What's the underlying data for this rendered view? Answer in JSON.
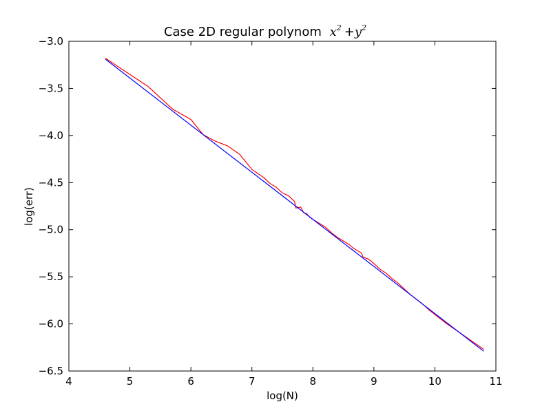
{
  "chart_data": {
    "type": "line",
    "title": "Case 2D regular polynom",
    "title_math": {
      "base1": "x",
      "exp1": "2",
      "op": "+",
      "base2": "y",
      "exp2": "2"
    },
    "xlabel": "log(N)",
    "ylabel": "log(err)",
    "xlim": [
      4,
      11
    ],
    "ylim": [
      -6.5,
      -3.0
    ],
    "xticks": [
      4,
      5,
      6,
      7,
      8,
      9,
      10,
      11
    ],
    "xtick_labels": [
      "4",
      "5",
      "6",
      "7",
      "8",
      "9",
      "10",
      "11"
    ],
    "yticks": [
      -3.0,
      -3.5,
      -4.0,
      -4.5,
      -5.0,
      -5.5,
      -6.0,
      -6.5
    ],
    "ytick_labels": [
      "−3.0",
      "−3.5",
      "−4.0",
      "−4.5",
      "−5.0",
      "−5.5",
      "−6.0",
      "−6.5"
    ],
    "grid": false,
    "series": [
      {
        "color": "#ff0000",
        "x": [
          4.6,
          5.3,
          5.7,
          6.0,
          6.2,
          6.4,
          6.6,
          6.8,
          6.9,
          7.0,
          7.2,
          7.3,
          7.4,
          7.5,
          7.6,
          7.7,
          7.72,
          7.8,
          7.85,
          7.9,
          7.95,
          8.0,
          8.1,
          8.2,
          8.25,
          8.3,
          8.4,
          8.5,
          8.6,
          8.65,
          8.7,
          8.8,
          8.82,
          8.9,
          8.95,
          9.0,
          9.1,
          9.2,
          9.3,
          9.4,
          9.5,
          9.6,
          9.7,
          9.8,
          9.9,
          10.0,
          10.2,
          10.4,
          10.6,
          10.8
        ],
        "y": [
          -3.18,
          -3.48,
          -3.72,
          -3.83,
          -3.99,
          -4.06,
          -4.11,
          -4.2,
          -4.28,
          -4.36,
          -4.45,
          -4.51,
          -4.55,
          -4.61,
          -4.64,
          -4.7,
          -4.77,
          -4.76,
          -4.82,
          -4.83,
          -4.87,
          -4.89,
          -4.93,
          -4.97,
          -5.0,
          -5.03,
          -5.08,
          -5.12,
          -5.16,
          -5.19,
          -5.21,
          -5.25,
          -5.29,
          -5.31,
          -5.33,
          -5.36,
          -5.42,
          -5.46,
          -5.52,
          -5.57,
          -5.63,
          -5.69,
          -5.74,
          -5.79,
          -5.85,
          -5.9,
          -6.0,
          -6.09,
          -6.18,
          -6.27
        ]
      },
      {
        "color": "#0000ff",
        "x": [
          4.6,
          10.8
        ],
        "y": [
          -3.19,
          -6.29
        ]
      }
    ]
  }
}
